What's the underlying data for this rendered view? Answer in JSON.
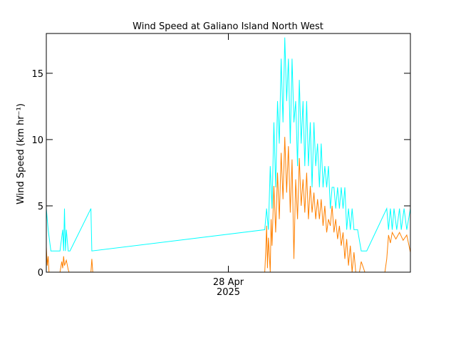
{
  "chart_data": {
    "type": "line",
    "title": "Wind Speed at Galiano Island North West",
    "y_label": "Wind Speed (km hr⁻¹)",
    "xlim": [
      26,
      30
    ],
    "ylim": [
      0,
      18
    ],
    "xticks": [
      {
        "value": 28,
        "label": "28 Apr\n2025"
      }
    ],
    "yticks": [
      0,
      5,
      10,
      15
    ],
    "series": [
      {
        "color": "#00ffff",
        "x": [
          26.0,
          26.02,
          26.05,
          26.1,
          26.15,
          26.18,
          26.19,
          26.2,
          26.21,
          26.22,
          26.24,
          26.26,
          26.49,
          26.5,
          28.4,
          28.42,
          28.44,
          28.46,
          28.48,
          28.5,
          28.52,
          28.54,
          28.56,
          28.58,
          28.6,
          28.62,
          28.64,
          28.66,
          28.68,
          28.7,
          28.72,
          28.74,
          28.76,
          28.78,
          28.8,
          28.82,
          28.84,
          28.86,
          28.88,
          28.9,
          28.92,
          28.94,
          28.96,
          28.98,
          29.0,
          29.02,
          29.04,
          29.06,
          29.08,
          29.1,
          29.12,
          29.14,
          29.16,
          29.18,
          29.2,
          29.22,
          29.24,
          29.26,
          29.28,
          29.3,
          29.32,
          29.34,
          29.36,
          29.38,
          29.4,
          29.42,
          29.46,
          29.52,
          29.74,
          29.76,
          29.78,
          29.8,
          29.82,
          29.85,
          29.88,
          29.9,
          29.93,
          29.96,
          30.0
        ],
        "values": [
          4.8,
          3.2,
          1.6,
          1.6,
          1.6,
          3.2,
          1.6,
          4.8,
          1.6,
          3.2,
          1.6,
          1.6,
          4.8,
          1.6,
          3.2,
          4.8,
          3.2,
          8.0,
          4.8,
          11.3,
          6.4,
          12.9,
          9.7,
          16.1,
          11.3,
          17.7,
          12.9,
          16.1,
          9.7,
          16.1,
          11.3,
          12.9,
          8.0,
          14.5,
          9.7,
          12.9,
          8.0,
          12.9,
          8.0,
          11.3,
          6.4,
          11.3,
          8.0,
          9.7,
          6.4,
          9.7,
          6.4,
          8.0,
          6.4,
          8.0,
          4.8,
          6.4,
          6.4,
          4.8,
          6.4,
          4.8,
          6.4,
          4.8,
          6.4,
          3.2,
          4.8,
          3.2,
          4.8,
          3.2,
          3.2,
          3.2,
          1.6,
          1.6,
          4.8,
          3.2,
          4.8,
          3.2,
          4.8,
          3.2,
          4.8,
          3.2,
          4.8,
          3.2,
          4.8
        ]
      },
      {
        "color": "#ff8000",
        "x": [
          26.0,
          26.01,
          26.02,
          26.03,
          26.15,
          26.17,
          26.18,
          26.19,
          26.2,
          26.22,
          26.24,
          26.25,
          26.49,
          26.5,
          26.51,
          28.4,
          28.41,
          28.42,
          28.43,
          28.44,
          28.46,
          28.47,
          28.48,
          28.5,
          28.52,
          28.54,
          28.56,
          28.58,
          28.6,
          28.62,
          28.64,
          28.66,
          28.68,
          28.7,
          28.72,
          28.74,
          28.76,
          28.78,
          28.8,
          28.82,
          28.84,
          28.86,
          28.88,
          28.9,
          28.92,
          28.94,
          28.96,
          28.98,
          29.0,
          29.02,
          29.04,
          29.06,
          29.08,
          29.1,
          29.12,
          29.14,
          29.16,
          29.18,
          29.2,
          29.22,
          29.24,
          29.26,
          29.28,
          29.3,
          29.32,
          29.34,
          29.36,
          29.38,
          29.4,
          29.44,
          29.46,
          29.5,
          29.72,
          29.74,
          29.76,
          29.78,
          29.8,
          29.84,
          29.88,
          29.92,
          29.96,
          30.0
        ],
        "values": [
          1.9,
          0.5,
          1.2,
          0,
          0,
          0.8,
          0.3,
          1.2,
          0.5,
          0.9,
          0.2,
          0,
          0,
          1.0,
          0,
          0,
          1.5,
          3.5,
          0.3,
          2.6,
          0,
          4.0,
          2.0,
          6.5,
          3.0,
          7.5,
          4.0,
          9.0,
          5.5,
          10.2,
          6.0,
          9.5,
          4.5,
          8.5,
          1.0,
          7.0,
          4.0,
          8.6,
          5.0,
          7.0,
          4.5,
          7.5,
          4.0,
          6.5,
          4.5,
          6.0,
          4.0,
          5.5,
          4.0,
          5.5,
          3.5,
          5.0,
          3.0,
          4.0,
          3.5,
          5.0,
          3.0,
          4.0,
          2.5,
          3.5,
          2.0,
          3.0,
          1.0,
          2.5,
          0.5,
          2.0,
          0,
          1.5,
          0,
          0,
          0.8,
          0,
          0,
          1.0,
          2.8,
          2.2,
          3.0,
          2.5,
          3.0,
          2.4,
          2.8,
          1.5
        ]
      }
    ]
  }
}
